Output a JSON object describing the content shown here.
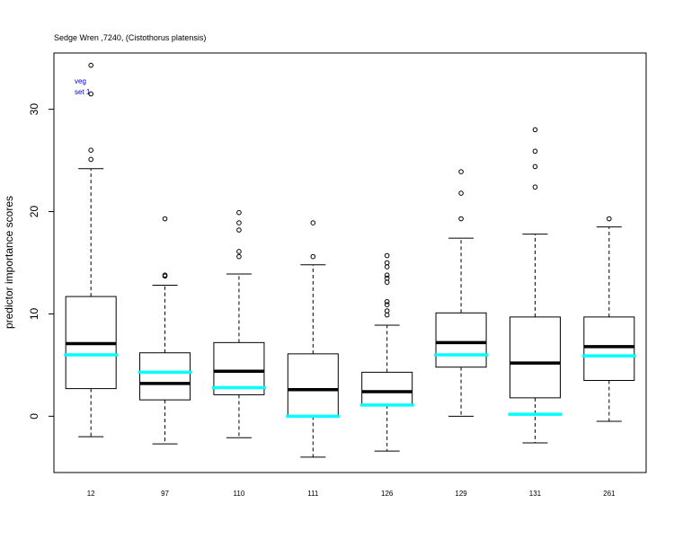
{
  "chart_data": {
    "type": "box",
    "title": "Sedge Wren ,7240, (Cistothorus platensis)",
    "ylabel": "predictor importance scores",
    "xlabel": "",
    "ylim": [
      -5.5,
      35.5
    ],
    "yticks": [
      0,
      10,
      20,
      30
    ],
    "annotations": [
      "veg",
      "set 1"
    ],
    "annotation_color": "#0000cc",
    "median_color": "#000000",
    "reference_color": "#00ffff",
    "categories": [
      "12",
      "97",
      "110",
      "111",
      "126",
      "129",
      "131",
      "261"
    ],
    "boxes": [
      {
        "label": "12",
        "whisker_low": -2.0,
        "q1": 2.7,
        "median": 7.1,
        "q3": 11.7,
        "whisker_high": 24.2,
        "reference": 6.0,
        "outliers": [
          25.1,
          26.0,
          31.5,
          34.3
        ]
      },
      {
        "label": "97",
        "whisker_low": -2.7,
        "q1": 1.6,
        "median": 3.2,
        "q3": 6.2,
        "whisker_high": 12.8,
        "reference": 4.3,
        "outliers": [
          13.7,
          13.8,
          19.3
        ]
      },
      {
        "label": "110",
        "whisker_low": -2.1,
        "q1": 2.1,
        "median": 4.4,
        "q3": 7.2,
        "whisker_high": 13.9,
        "reference": 2.8,
        "outliers": [
          15.6,
          16.1,
          18.2,
          18.9,
          19.9
        ]
      },
      {
        "label": "111",
        "whisker_low": -4.0,
        "q1": 0.0,
        "median": 2.6,
        "q3": 6.1,
        "whisker_high": 14.8,
        "reference": 0.0,
        "outliers": [
          15.6,
          18.9
        ]
      },
      {
        "label": "126",
        "whisker_low": -3.4,
        "q1": 1.1,
        "median": 2.4,
        "q3": 4.3,
        "whisker_high": 8.9,
        "reference": 1.1,
        "outliers": [
          9.9,
          10.3,
          10.9,
          11.2,
          13.1,
          13.5,
          13.8,
          14.6,
          15.0,
          15.7
        ]
      },
      {
        "label": "129",
        "whisker_low": 0.0,
        "q1": 4.8,
        "median": 7.2,
        "q3": 10.1,
        "whisker_high": 17.4,
        "reference": 6.0,
        "outliers": [
          19.3,
          21.8,
          23.9
        ]
      },
      {
        "label": "131",
        "whisker_low": -2.6,
        "q1": 1.8,
        "median": 5.2,
        "q3": 9.7,
        "whisker_high": 17.8,
        "reference": 0.2,
        "outliers": [
          22.4,
          24.4,
          25.9,
          28.0
        ]
      },
      {
        "label": "261",
        "whisker_low": -0.5,
        "q1": 3.5,
        "median": 6.8,
        "q3": 9.7,
        "whisker_high": 18.5,
        "reference": 5.9,
        "outliers": [
          19.3
        ]
      }
    ]
  }
}
